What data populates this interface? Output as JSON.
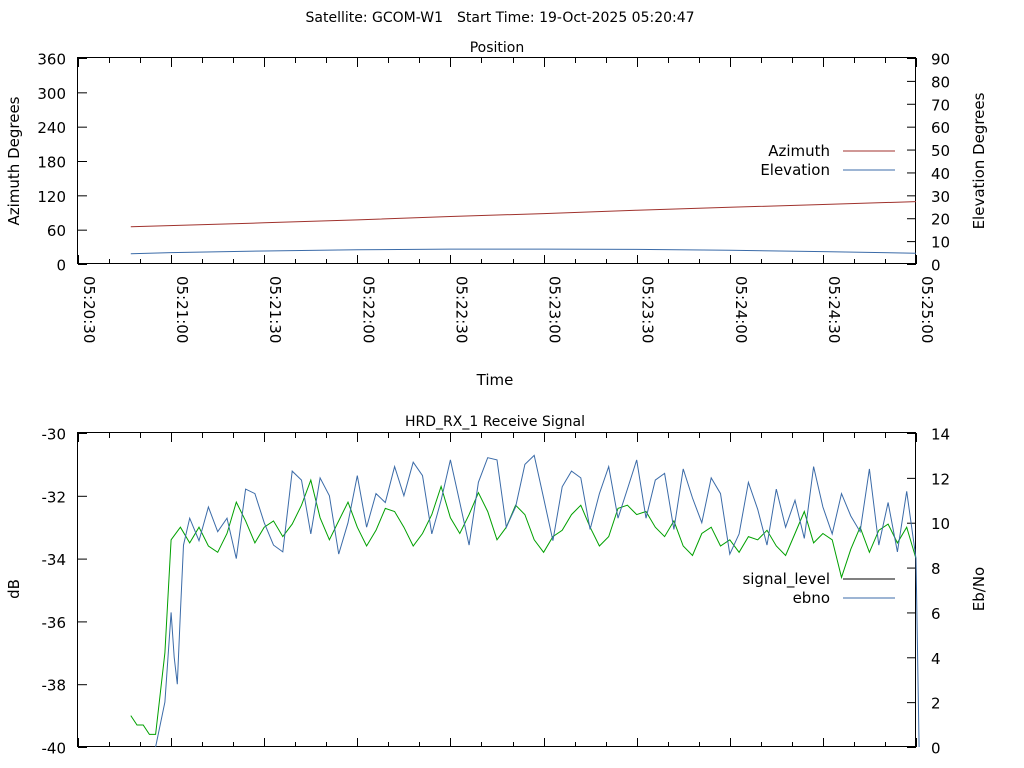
{
  "header": {
    "satellite_label": "Satellite: GCOM-W1",
    "start_label": "Start Time: 19-Oct-2025 05:20:47"
  },
  "chart_data": [
    {
      "type": "line",
      "title": "Position",
      "xlabel": "Time",
      "ylabel": "Azimuth Degrees",
      "y2label": "Elevation Degrees",
      "x_ticks": [
        "05:20:30",
        "05:21:00",
        "05:21:30",
        "05:22:00",
        "05:22:30",
        "05:23:00",
        "05:23:30",
        "05:24:00",
        "05:24:30",
        "05:25:00"
      ],
      "xlim": [
        "05:20:30",
        "05:25:00"
      ],
      "ylim": [
        0,
        360
      ],
      "y_ticks": [
        0,
        60,
        120,
        180,
        240,
        300,
        360
      ],
      "y2lim": [
        0,
        90
      ],
      "y2_ticks": [
        0,
        10,
        20,
        30,
        40,
        50,
        60,
        70,
        80,
        90
      ],
      "legend_position": "right",
      "series": [
        {
          "name": "Azimuth",
          "axis": "y",
          "color": "#a0322d",
          "points": [
            [
              "05:20:47",
              65
            ],
            [
              "05:21:30",
              72
            ],
            [
              "05:22:00",
              77
            ],
            [
              "05:22:30",
              83
            ],
            [
              "05:23:00",
              88
            ],
            [
              "05:23:30",
              94
            ],
            [
              "05:24:00",
              99
            ],
            [
              "05:24:30",
              104
            ],
            [
              "05:25:00",
              109
            ]
          ]
        },
        {
          "name": "Elevation",
          "axis": "y2",
          "color": "#3b6ba8",
          "points": [
            [
              "05:20:47",
              4.5
            ],
            [
              "05:21:00",
              5
            ],
            [
              "05:21:30",
              5.7
            ],
            [
              "05:22:00",
              6.2
            ],
            [
              "05:22:30",
              6.5
            ],
            [
              "05:23:00",
              6.5
            ],
            [
              "05:23:30",
              6.4
            ],
            [
              "05:24:00",
              6.0
            ],
            [
              "05:24:30",
              5.4
            ],
            [
              "05:25:00",
              4.7
            ]
          ]
        }
      ]
    },
    {
      "type": "line",
      "title": "HRD_RX_1 Receive Signal",
      "xlabel": "",
      "ylabel": "dB",
      "y2label": "Eb/No",
      "xlim": [
        "05:20:30",
        "05:25:00"
      ],
      "ylim": [
        -40,
        -30
      ],
      "y_ticks": [
        -40,
        -38,
        -36,
        -34,
        -32,
        -30
      ],
      "y2lim": [
        0,
        14
      ],
      "y2_ticks": [
        0,
        2,
        4,
        6,
        8,
        10,
        12,
        14
      ],
      "legend_position": "right",
      "legend_colors": {
        "signal_level": "#000000",
        "ebno": "#3b6ba8"
      },
      "series": [
        {
          "name": "signal_level",
          "axis": "y",
          "color": "#00a000",
          "points": [
            [
              "05:20:47",
              -39.0
            ],
            [
              "05:20:49",
              -39.3
            ],
            [
              "05:20:51",
              -39.3
            ],
            [
              "05:20:53",
              -39.6
            ],
            [
              "05:20:55",
              -39.6
            ],
            [
              "05:20:58",
              -37.0
            ],
            [
              "05:21:00",
              -33.4
            ],
            [
              "05:21:03",
              -33.0
            ],
            [
              "05:21:06",
              -33.5
            ],
            [
              "05:21:09",
              -33.0
            ],
            [
              "05:21:12",
              -33.6
            ],
            [
              "05:21:15",
              -33.8
            ],
            [
              "05:21:18",
              -33.2
            ],
            [
              "05:21:21",
              -32.2
            ],
            [
              "05:21:24",
              -32.8
            ],
            [
              "05:21:27",
              -33.5
            ],
            [
              "05:21:30",
              -33.0
            ],
            [
              "05:21:33",
              -32.8
            ],
            [
              "05:21:36",
              -33.3
            ],
            [
              "05:21:39",
              -32.9
            ],
            [
              "05:21:42",
              -32.3
            ],
            [
              "05:21:45",
              -31.5
            ],
            [
              "05:21:48",
              -32.7
            ],
            [
              "05:21:51",
              -33.4
            ],
            [
              "05:21:54",
              -32.8
            ],
            [
              "05:21:57",
              -32.2
            ],
            [
              "05:22:00",
              -33.0
            ],
            [
              "05:22:03",
              -33.6
            ],
            [
              "05:22:06",
              -33.1
            ],
            [
              "05:22:09",
              -32.4
            ],
            [
              "05:22:12",
              -32.5
            ],
            [
              "05:22:15",
              -33.0
            ],
            [
              "05:22:18",
              -33.6
            ],
            [
              "05:22:21",
              -33.2
            ],
            [
              "05:22:24",
              -32.6
            ],
            [
              "05:22:27",
              -31.7
            ],
            [
              "05:22:30",
              -32.7
            ],
            [
              "05:22:33",
              -33.2
            ],
            [
              "05:22:36",
              -32.6
            ],
            [
              "05:22:39",
              -31.9
            ],
            [
              "05:22:42",
              -32.5
            ],
            [
              "05:22:45",
              -33.4
            ],
            [
              "05:22:48",
              -33.0
            ],
            [
              "05:22:51",
              -32.3
            ],
            [
              "05:22:54",
              -32.6
            ],
            [
              "05:22:57",
              -33.4
            ],
            [
              "05:23:00",
              -33.8
            ],
            [
              "05:23:03",
              -33.3
            ],
            [
              "05:23:06",
              -33.1
            ],
            [
              "05:23:09",
              -32.6
            ],
            [
              "05:23:12",
              -32.3
            ],
            [
              "05:23:15",
              -33.0
            ],
            [
              "05:23:18",
              -33.6
            ],
            [
              "05:23:21",
              -33.3
            ],
            [
              "05:23:24",
              -32.4
            ],
            [
              "05:23:27",
              -32.3
            ],
            [
              "05:23:30",
              -32.6
            ],
            [
              "05:23:33",
              -32.5
            ],
            [
              "05:23:36",
              -33.0
            ],
            [
              "05:23:39",
              -33.3
            ],
            [
              "05:23:42",
              -32.8
            ],
            [
              "05:23:45",
              -33.6
            ],
            [
              "05:23:48",
              -33.9
            ],
            [
              "05:23:51",
              -33.2
            ],
            [
              "05:23:54",
              -33.0
            ],
            [
              "05:23:57",
              -33.6
            ],
            [
              "05:24:00",
              -33.4
            ],
            [
              "05:24:03",
              -33.8
            ],
            [
              "05:24:06",
              -33.3
            ],
            [
              "05:24:09",
              -33.4
            ],
            [
              "05:24:12",
              -33.1
            ],
            [
              "05:24:15",
              -33.6
            ],
            [
              "05:24:18",
              -33.9
            ],
            [
              "05:24:21",
              -33.2
            ],
            [
              "05:24:24",
              -32.5
            ],
            [
              "05:24:27",
              -33.5
            ],
            [
              "05:24:30",
              -33.2
            ],
            [
              "05:24:33",
              -33.4
            ],
            [
              "05:24:36",
              -34.6
            ],
            [
              "05:24:39",
              -33.7
            ],
            [
              "05:24:42",
              -33.0
            ],
            [
              "05:24:45",
              -33.8
            ],
            [
              "05:24:48",
              -33.1
            ],
            [
              "05:24:51",
              -32.9
            ],
            [
              "05:24:54",
              -33.5
            ],
            [
              "05:24:57",
              -33.0
            ],
            [
              "05:25:00",
              -34.0
            ]
          ]
        },
        {
          "name": "ebno",
          "axis": "y2",
          "color": "#3b6ba8",
          "points": [
            [
              "05:20:55",
              0
            ],
            [
              "05:20:58",
              2
            ],
            [
              "05:21:00",
              6
            ],
            [
              "05:21:01",
              4
            ],
            [
              "05:21:02",
              2.8
            ],
            [
              "05:21:03",
              6
            ],
            [
              "05:21:04",
              9
            ],
            [
              "05:21:06",
              10.2
            ],
            [
              "05:21:09",
              9.2
            ],
            [
              "05:21:12",
              10.7
            ],
            [
              "05:21:15",
              9.6
            ],
            [
              "05:21:18",
              10.2
            ],
            [
              "05:21:21",
              8.4
            ],
            [
              "05:21:24",
              11.5
            ],
            [
              "05:21:27",
              11.3
            ],
            [
              "05:21:30",
              10.0
            ],
            [
              "05:21:33",
              9.0
            ],
            [
              "05:21:36",
              8.7
            ],
            [
              "05:21:39",
              12.3
            ],
            [
              "05:21:42",
              11.9
            ],
            [
              "05:21:45",
              9.5
            ],
            [
              "05:21:48",
              12.0
            ],
            [
              "05:21:51",
              11.2
            ],
            [
              "05:21:54",
              8.6
            ],
            [
              "05:21:57",
              10.0
            ],
            [
              "05:22:00",
              12.1
            ],
            [
              "05:22:03",
              9.8
            ],
            [
              "05:22:06",
              11.3
            ],
            [
              "05:22:09",
              10.9
            ],
            [
              "05:22:12",
              12.5
            ],
            [
              "05:22:15",
              11.2
            ],
            [
              "05:22:18",
              12.7
            ],
            [
              "05:22:21",
              12.1
            ],
            [
              "05:22:24",
              9.5
            ],
            [
              "05:22:27",
              11.0
            ],
            [
              "05:22:30",
              12.8
            ],
            [
              "05:22:33",
              10.9
            ],
            [
              "05:22:36",
              9.0
            ],
            [
              "05:22:39",
              11.8
            ],
            [
              "05:22:42",
              12.9
            ],
            [
              "05:22:45",
              12.8
            ],
            [
              "05:22:48",
              9.8
            ],
            [
              "05:22:51",
              10.7
            ],
            [
              "05:22:54",
              12.6
            ],
            [
              "05:22:57",
              13.0
            ],
            [
              "05:23:00",
              11.1
            ],
            [
              "05:23:03",
              9.2
            ],
            [
              "05:23:06",
              11.6
            ],
            [
              "05:23:09",
              12.3
            ],
            [
              "05:23:12",
              12.0
            ],
            [
              "05:23:15",
              9.7
            ],
            [
              "05:23:18",
              11.3
            ],
            [
              "05:23:21",
              12.5
            ],
            [
              "05:23:24",
              10.2
            ],
            [
              "05:23:27",
              11.5
            ],
            [
              "05:23:30",
              12.8
            ],
            [
              "05:23:33",
              10.2
            ],
            [
              "05:23:36",
              11.9
            ],
            [
              "05:23:39",
              12.2
            ],
            [
              "05:23:42",
              9.7
            ],
            [
              "05:23:45",
              12.4
            ],
            [
              "05:23:48",
              11.1
            ],
            [
              "05:23:51",
              10.0
            ],
            [
              "05:23:54",
              12.0
            ],
            [
              "05:23:57",
              11.3
            ],
            [
              "05:24:00",
              8.6
            ],
            [
              "05:24:03",
              9.5
            ],
            [
              "05:24:06",
              11.8
            ],
            [
              "05:24:09",
              10.6
            ],
            [
              "05:24:12",
              9.0
            ],
            [
              "05:24:15",
              11.5
            ],
            [
              "05:24:18",
              9.8
            ],
            [
              "05:24:21",
              11.0
            ],
            [
              "05:24:24",
              9.3
            ],
            [
              "05:24:27",
              12.5
            ],
            [
              "05:24:30",
              10.7
            ],
            [
              "05:24:33",
              9.5
            ],
            [
              "05:24:36",
              11.3
            ],
            [
              "05:24:39",
              10.3
            ],
            [
              "05:24:42",
              9.6
            ],
            [
              "05:24:45",
              12.4
            ],
            [
              "05:24:48",
              9.0
            ],
            [
              "05:24:51",
              10.9
            ],
            [
              "05:24:54",
              8.7
            ],
            [
              "05:24:57",
              11.4
            ],
            [
              "05:25:00",
              8.4
            ],
            [
              "05:25:01",
              0
            ]
          ]
        }
      ]
    }
  ]
}
